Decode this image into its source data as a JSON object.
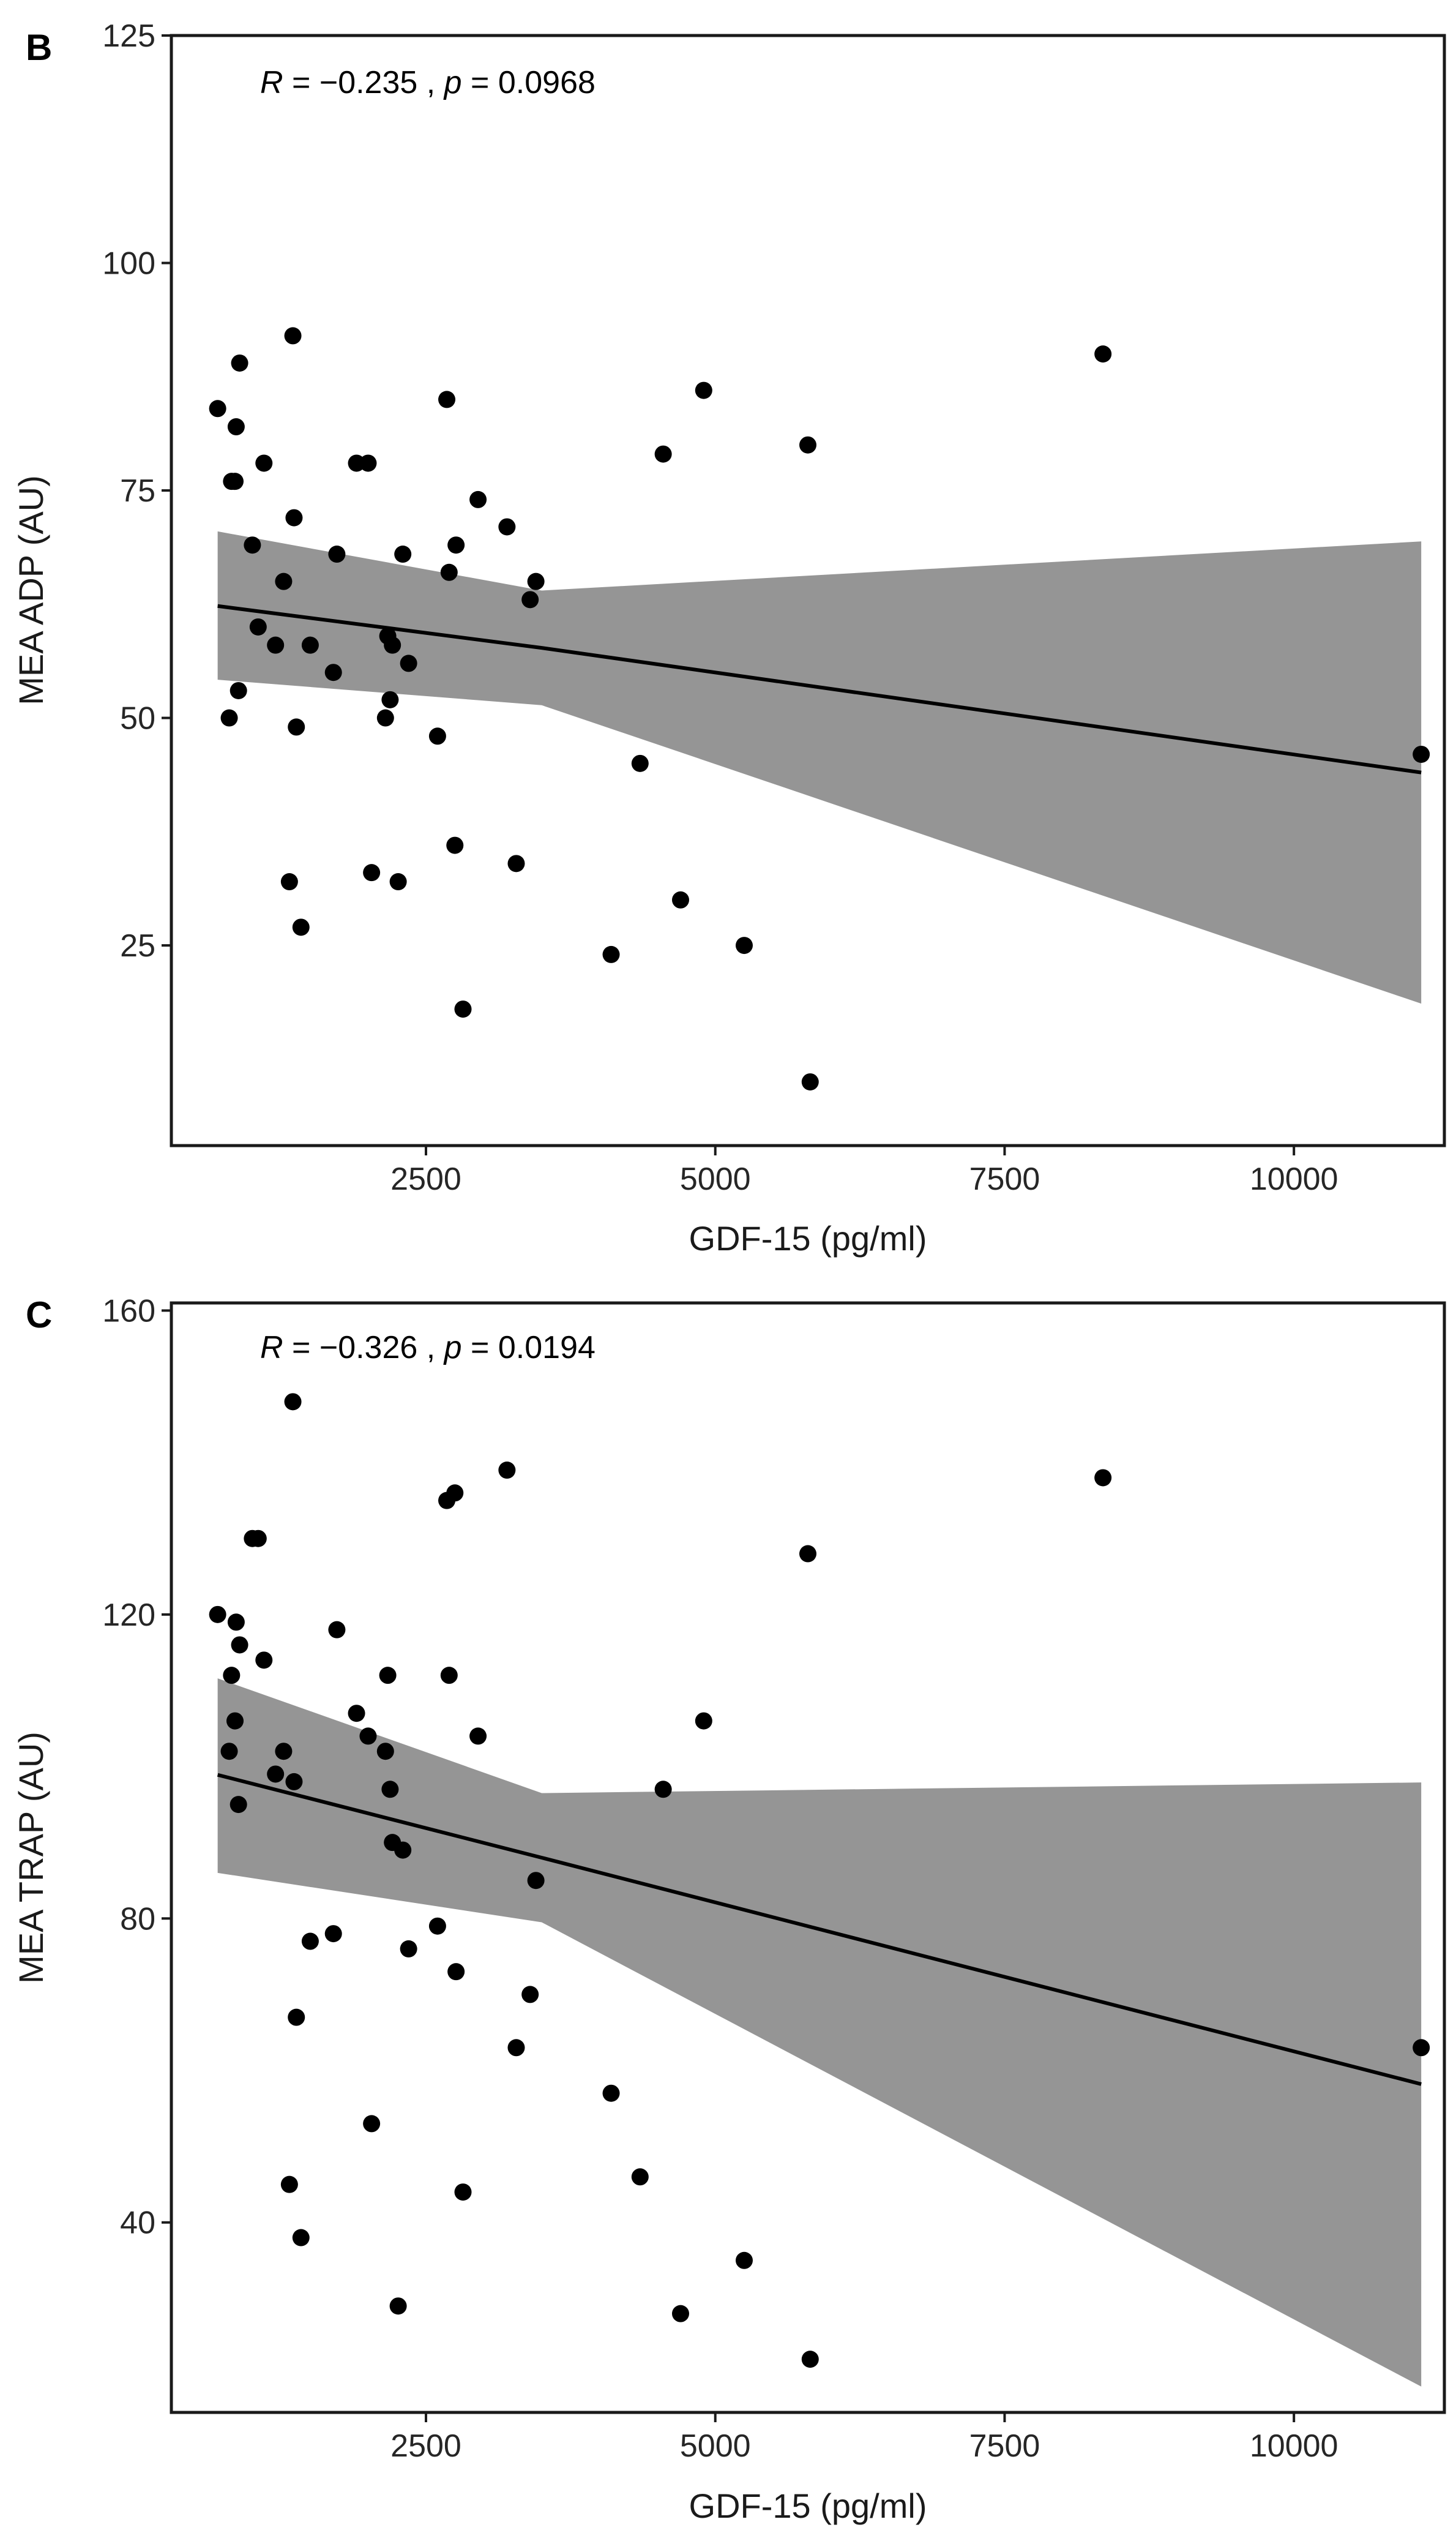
{
  "chart_data": [
    {
      "type": "scatter",
      "panel_label": "B",
      "annotation": {
        "r_symbol": "R",
        "r_text": " = −0.235 , ",
        "p_symbol": "p",
        "p_text": " = 0.0968"
      },
      "xlabel": "GDF-15 (pg/ml)",
      "ylabel": "MEA ADP (AU)",
      "xlim": [
        300,
        11300
      ],
      "ylim": [
        3,
        125
      ],
      "xticks": [
        2500,
        5000,
        7500,
        10000
      ],
      "xtick_labels": [
        "2500",
        "5000",
        "7500",
        "10000"
      ],
      "yticks": [
        25,
        50,
        75,
        100,
        125
      ],
      "ytick_labels": [
        "25",
        "50",
        "75",
        "100",
        "125"
      ],
      "grid": false,
      "regression": {
        "x": [
          700,
          3500,
          11100
        ],
        "fit": [
          62.3,
          57.7,
          44.0
        ],
        "lower": [
          54.2,
          51.4,
          18.6
        ],
        "upper": [
          70.5,
          64.0,
          69.4
        ]
      },
      "points": [
        [
          700,
          84
        ],
        [
          800,
          50
        ],
        [
          820,
          76
        ],
        [
          850,
          76
        ],
        [
          860,
          82
        ],
        [
          880,
          53
        ],
        [
          890,
          89
        ],
        [
          1000,
          69
        ],
        [
          1050,
          60
        ],
        [
          1100,
          78
        ],
        [
          1200,
          58
        ],
        [
          1270,
          65
        ],
        [
          1320,
          32
        ],
        [
          1350,
          92
        ],
        [
          1360,
          72
        ],
        [
          1380,
          49
        ],
        [
          1420,
          27
        ],
        [
          1500,
          58
        ],
        [
          1700,
          55
        ],
        [
          1730,
          68
        ],
        [
          1900,
          78
        ],
        [
          2000,
          78
        ],
        [
          2030,
          33
        ],
        [
          2150,
          50
        ],
        [
          2170,
          59
        ],
        [
          2190,
          52
        ],
        [
          2210,
          58
        ],
        [
          2260,
          32
        ],
        [
          2300,
          68
        ],
        [
          2350,
          56
        ],
        [
          2600,
          48
        ],
        [
          2680,
          85
        ],
        [
          2700,
          66
        ],
        [
          2750,
          36
        ],
        [
          2760,
          69
        ],
        [
          2820,
          18
        ],
        [
          2950,
          74
        ],
        [
          3200,
          71
        ],
        [
          3280,
          34
        ],
        [
          3400,
          63
        ],
        [
          3450,
          65
        ],
        [
          4100,
          24
        ],
        [
          4350,
          45
        ],
        [
          4550,
          79
        ],
        [
          4700,
          30
        ],
        [
          4900,
          86
        ],
        [
          5250,
          25
        ],
        [
          5800,
          80
        ],
        [
          5820,
          10
        ],
        [
          8350,
          90
        ],
        [
          11100,
          46
        ]
      ]
    },
    {
      "type": "scatter",
      "panel_label": "C",
      "annotation": {
        "r_symbol": "R",
        "r_text": " = −0.326 , ",
        "p_symbol": "p",
        "p_text": " = 0.0194"
      },
      "xlabel": "GDF-15 (pg/ml)",
      "ylabel": "MEA TRAP (AU)",
      "xlim": [
        300,
        11300
      ],
      "ylim": [
        15,
        161
      ],
      "xticks": [
        2500,
        5000,
        7500,
        10000
      ],
      "xtick_labels": [
        "2500",
        "5000",
        "7500",
        "10000"
      ],
      "yticks": [
        40,
        80,
        120,
        160
      ],
      "ytick_labels": [
        "40",
        "80",
        "120",
        "160"
      ],
      "grid": false,
      "regression": {
        "x": [
          700,
          3500,
          11100
        ],
        "fit": [
          98.9,
          88.0,
          58.2
        ],
        "lower": [
          86.0,
          79.5,
          18.4
        ],
        "upper": [
          111.6,
          96.5,
          97.9
        ]
      },
      "points": [
        [
          700,
          120
        ],
        [
          800,
          102
        ],
        [
          820,
          112
        ],
        [
          850,
          106
        ],
        [
          860,
          119
        ],
        [
          880,
          95
        ],
        [
          890,
          116
        ],
        [
          1000,
          130
        ],
        [
          1050,
          130
        ],
        [
          1100,
          114
        ],
        [
          1200,
          99
        ],
        [
          1270,
          102
        ],
        [
          1320,
          45
        ],
        [
          1350,
          148
        ],
        [
          1360,
          98
        ],
        [
          1380,
          67
        ],
        [
          1420,
          38
        ],
        [
          1500,
          77
        ],
        [
          1700,
          78
        ],
        [
          1730,
          118
        ],
        [
          1900,
          107
        ],
        [
          2000,
          104
        ],
        [
          2030,
          53
        ],
        [
          2150,
          102
        ],
        [
          2170,
          112
        ],
        [
          2190,
          97
        ],
        [
          2210,
          90
        ],
        [
          2260,
          29
        ],
        [
          2300,
          89
        ],
        [
          2350,
          76
        ],
        [
          2600,
          79
        ],
        [
          2680,
          135
        ],
        [
          2700,
          112
        ],
        [
          2750,
          136
        ],
        [
          2760,
          73
        ],
        [
          2820,
          44
        ],
        [
          2950,
          104
        ],
        [
          3200,
          139
        ],
        [
          3280,
          63
        ],
        [
          3400,
          70
        ],
        [
          3450,
          85
        ],
        [
          4100,
          57
        ],
        [
          4350,
          46
        ],
        [
          4550,
          97
        ],
        [
          4700,
          28
        ],
        [
          4900,
          106
        ],
        [
          5250,
          35
        ],
        [
          5800,
          128
        ],
        [
          5820,
          22
        ],
        [
          8350,
          138
        ],
        [
          11100,
          63
        ]
      ]
    }
  ]
}
